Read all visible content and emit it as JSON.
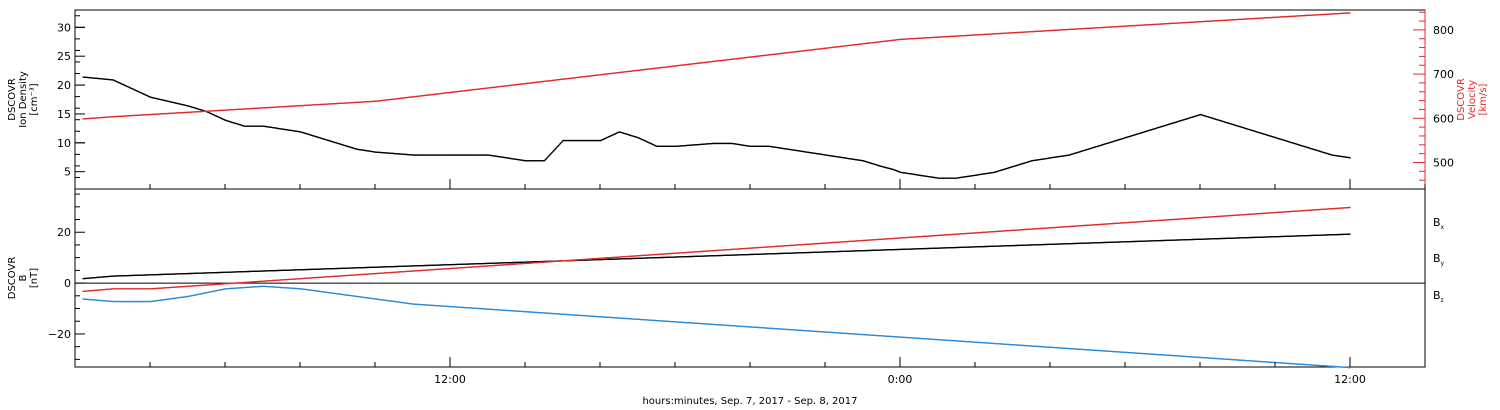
{
  "colors": {
    "black": "#000000",
    "red": "#e32b2b",
    "blue": "#2a8ad8"
  },
  "xaxis": {
    "label": "hours:minutes, Sep.  7, 2017 - Sep.  8, 2017",
    "tick_labels": [
      "12:00",
      "0:00",
      "12:00"
    ],
    "range_hours": [
      -22,
      14
    ],
    "major_tick_hours": [
      -12,
      0,
      12
    ],
    "minor_step_hours": 2
  },
  "chart_data": [
    {
      "type": "scatter",
      "panel": "top",
      "y_left": {
        "label_lines": [
          "DSCOVR",
          "Ion Density",
          "[cm⁻³]"
        ],
        "range": [
          2,
          33
        ],
        "ticks": [
          5,
          10,
          15,
          20,
          25,
          30
        ],
        "tick_labels": [
          "5",
          "10",
          "15",
          "20",
          "25",
          "30"
        ],
        "color": "#000000"
      },
      "y_right": {
        "label_lines": [
          "DSCOVR",
          "Velocity",
          "[km/s]"
        ],
        "range": [
          440,
          845
        ],
        "ticks": [
          500,
          600,
          700,
          800
        ],
        "tick_labels": [
          "500",
          "600",
          "700",
          "800"
        ],
        "minor_step": 20,
        "color": "#e32b2b"
      },
      "series": [
        {
          "axis": "left",
          "color": "#000000",
          "points": [
            [
              -21.8,
              21.5
            ],
            [
              -21,
              21
            ],
            [
              -20,
              18
            ],
            [
              -19,
              16.5
            ],
            [
              -18.5,
              15.5
            ],
            [
              -18,
              14
            ],
            [
              -17.5,
              13
            ],
            [
              -17,
              13
            ],
            [
              -16.5,
              12.5
            ],
            [
              -16,
              12
            ],
            [
              -15.5,
              11
            ],
            [
              -15,
              10
            ],
            [
              -14.5,
              9
            ],
            [
              -14,
              8.5
            ],
            [
              -13,
              8
            ],
            [
              -12,
              8
            ],
            [
              -11,
              8
            ],
            [
              -10.5,
              7.5
            ],
            [
              -10,
              7
            ],
            [
              -9.5,
              7
            ],
            [
              -9,
              10.5
            ],
            [
              -8,
              10.5
            ],
            [
              -7.5,
              12
            ],
            [
              -7,
              11
            ],
            [
              -6.5,
              9.5
            ],
            [
              -6,
              9.5
            ],
            [
              -5,
              10
            ],
            [
              -4.5,
              10
            ],
            [
              -4,
              9.5
            ],
            [
              -3.5,
              9.5
            ],
            [
              -3,
              9
            ],
            [
              -2.5,
              8.5
            ],
            [
              -2,
              8
            ],
            [
              -1.5,
              7.5
            ],
            [
              -1,
              7
            ],
            [
              -0.5,
              6
            ],
            [
              -0.2,
              5.5
            ],
            [
              0,
              5
            ],
            [
              0.5,
              4.5
            ],
            [
              1,
              4
            ],
            [
              1.5,
              4
            ],
            [
              2,
              4.5
            ],
            [
              2.5,
              5
            ],
            [
              3,
              6
            ],
            [
              3.5,
              7
            ],
            [
              4,
              7.5
            ],
            [
              4.5,
              8
            ],
            [
              5,
              9
            ],
            [
              5.5,
              10
            ],
            [
              6,
              11
            ],
            [
              6.5,
              12
            ],
            [
              7,
              13
            ],
            [
              7.5,
              14
            ],
            [
              8,
              15
            ],
            [
              8.5,
              14
            ],
            [
              9,
              13
            ],
            [
              9.5,
              12
            ],
            [
              10,
              11
            ],
            [
              10.5,
              10
            ],
            [
              11,
              9
            ],
            [
              11.5,
              8
            ],
            [
              12,
              7.5
            ]
          ]
        },
        {
          "axis": "right",
          "color": "#e32b2b",
          "points": [
            [
              -21.8,
              600
            ],
            [
              -21,
              605
            ],
            [
              -20,
              610
            ],
            [
              -19,
              615
            ],
            [
              -18,
              620
            ],
            [
              -17,
              625
            ],
            [
              -16,
              630
            ],
            [
              -15,
              635
            ],
            [
              -14,
              640
            ],
            [
              -13,
              650
            ],
            [
              -12,
              660
            ],
            [
              -11,
              670
            ],
            [
              -10,
              680
            ],
            [
              -9,
              690
            ],
            [
              -8,
              700
            ],
            [
              -7,
              710
            ],
            [
              -6,
              720
            ],
            [
              -5,
              730
            ],
            [
              -4,
              740
            ],
            [
              -3,
              750
            ],
            [
              -2,
              760
            ],
            [
              -1,
              770
            ],
            [
              0,
              780
            ],
            [
              1,
              785
            ],
            [
              2,
              790
            ],
            [
              3,
              795
            ],
            [
              4,
              800
            ],
            [
              5,
              805
            ],
            [
              6,
              810
            ],
            [
              7,
              815
            ],
            [
              8,
              820
            ],
            [
              9,
              825
            ],
            [
              10,
              830
            ],
            [
              11,
              835
            ],
            [
              12,
              840
            ]
          ]
        }
      ]
    },
    {
      "type": "scatter",
      "panel": "bottom",
      "y_left": {
        "label_lines": [
          "DSCOVR",
          "B",
          "[nT]"
        ],
        "range": [
          -33,
          37
        ],
        "ticks": [
          -20,
          0,
          20
        ],
        "tick_labels": [
          "−20",
          "0",
          "20"
        ],
        "zero_line": true
      },
      "legend": {
        "position": "right",
        "entries": [
          {
            "name": "B",
            "sub": "x",
            "color": "#000000"
          },
          {
            "name": "B",
            "sub": "y",
            "color": "#2a8ad8"
          },
          {
            "name": "B",
            "sub": "z",
            "color": "#e32b2b"
          }
        ]
      },
      "series": [
        {
          "name": "Bx",
          "color": "#000000",
          "points": [
            [
              -21.8,
              2
            ],
            [
              -21,
              3
            ],
            [
              -20,
              3.5
            ],
            [
              -19,
              4
            ],
            [
              -18,
              4.5
            ],
            [
              -17,
              5
            ],
            [
              -16,
              5.5
            ],
            [
              -15,
              6
            ],
            [
              -14,
              6.5
            ],
            [
              -13,
              7
            ],
            [
              -12,
              7.5
            ],
            [
              -11,
              8
            ],
            [
              -10,
              8.5
            ],
            [
              -9,
              9
            ],
            [
              -8,
              9.5
            ],
            [
              -7,
              10
            ],
            [
              -6,
              10.5
            ],
            [
              -5,
              11
            ],
            [
              -4,
              11.5
            ],
            [
              -3,
              12
            ],
            [
              -2,
              12.5
            ],
            [
              -1,
              13
            ],
            [
              0,
              13.5
            ],
            [
              1,
              14
            ],
            [
              2,
              14.5
            ],
            [
              3,
              15
            ],
            [
              4,
              15.5
            ],
            [
              5,
              16
            ],
            [
              6,
              16.5
            ],
            [
              7,
              17
            ],
            [
              8,
              17.5
            ],
            [
              9,
              18
            ],
            [
              10,
              18.5
            ],
            [
              11,
              19
            ],
            [
              12,
              19.5
            ]
          ]
        },
        {
          "name": "By",
          "color": "#2a8ad8",
          "points": [
            [
              -21.8,
              -6
            ],
            [
              -21,
              -7
            ],
            [
              -20,
              -7
            ],
            [
              -19,
              -5
            ],
            [
              -18,
              -2
            ],
            [
              -17,
              -1
            ],
            [
              -16,
              -2
            ],
            [
              -15,
              -4
            ],
            [
              -14,
              -6
            ],
            [
              -13,
              -8
            ],
            [
              -12,
              -9
            ],
            [
              -11,
              -10
            ],
            [
              -10,
              -11
            ],
            [
              -9,
              -12
            ],
            [
              -8,
              -13
            ],
            [
              -7,
              -14
            ],
            [
              -6,
              -15
            ],
            [
              -5,
              -16
            ],
            [
              -4,
              -17
            ],
            [
              -3,
              -18
            ],
            [
              -2,
              -19
            ],
            [
              -1,
              -20
            ],
            [
              0,
              -21
            ],
            [
              1,
              -22
            ],
            [
              2,
              -23
            ],
            [
              3,
              -24
            ],
            [
              4,
              -25
            ],
            [
              5,
              -26
            ],
            [
              6,
              -27
            ],
            [
              7,
              -28
            ],
            [
              8,
              -29
            ],
            [
              9,
              -30
            ],
            [
              10,
              -31
            ],
            [
              11,
              -32
            ],
            [
              12,
              -33
            ]
          ]
        },
        {
          "name": "Bz",
          "color": "#e32b2b",
          "points": [
            [
              -21.8,
              -3
            ],
            [
              -21,
              -2
            ],
            [
              -20,
              -2
            ],
            [
              -19,
              -1
            ],
            [
              -18,
              0
            ],
            [
              -17,
              1
            ],
            [
              -16,
              2
            ],
            [
              -15,
              3
            ],
            [
              -14,
              4
            ],
            [
              -13,
              5
            ],
            [
              -12,
              6
            ],
            [
              -11,
              7
            ],
            [
              -10,
              8
            ],
            [
              -9,
              9
            ],
            [
              -8,
              10
            ],
            [
              -7,
              11
            ],
            [
              -6,
              12
            ],
            [
              -5,
              13
            ],
            [
              -4,
              14
            ],
            [
              -3,
              15
            ],
            [
              -2,
              16
            ],
            [
              -1,
              17
            ],
            [
              0,
              18
            ],
            [
              1,
              19
            ],
            [
              2,
              20
            ],
            [
              3,
              21
            ],
            [
              4,
              22
            ],
            [
              5,
              23
            ],
            [
              6,
              24
            ],
            [
              7,
              25
            ],
            [
              8,
              26
            ],
            [
              9,
              27
            ],
            [
              10,
              28
            ],
            [
              11,
              29
            ],
            [
              12,
              30
            ]
          ]
        }
      ]
    }
  ]
}
